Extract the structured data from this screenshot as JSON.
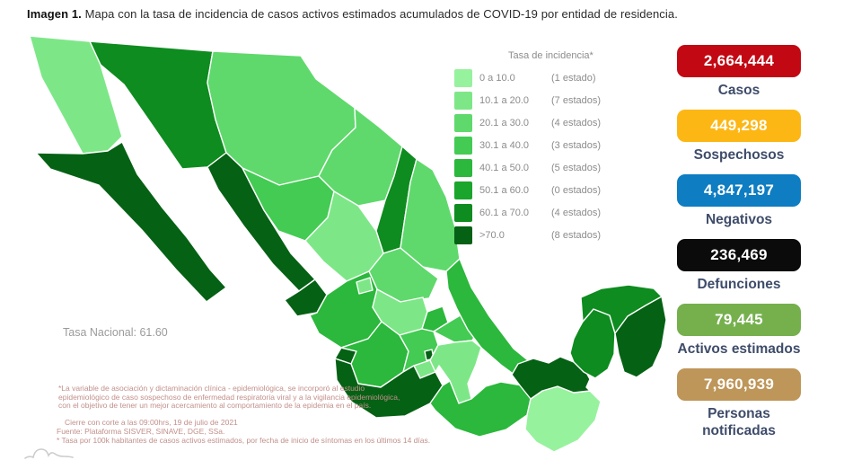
{
  "title": {
    "prefix": "Imagen 1.",
    "text": " Mapa con la tasa de incidencia de casos activos estimados acumulados de COVID-19 por entidad de residencia."
  },
  "map": {
    "national_rate_label": "Tasa Nacional: 61.60",
    "national_rate": 61.6,
    "legend": {
      "title": "Tasa de incidencia*",
      "items": [
        {
          "range": "0   a  10.0",
          "count": "(1 estado)",
          "color": "#97F29E"
        },
        {
          "range": "10.1 a  20.0",
          "count": "(7 estados)",
          "color": "#7DE787"
        },
        {
          "range": "20.1 a  30.0",
          "count": "(4 estados)",
          "color": "#5FD96C"
        },
        {
          "range": "30.1 a  40.0",
          "count": "(3 estados)",
          "color": "#43CB53"
        },
        {
          "range": "40.1 a  50.0",
          "count": "(5 estados)",
          "color": "#2BB83C"
        },
        {
          "range": "50.1 a  60.0",
          "count": "(0 estados)",
          "color": "#1AA52C"
        },
        {
          "range": "60.1 a  70.0",
          "count": "(4 estados)",
          "color": "#0E8C1F"
        },
        {
          "range": ">70.0",
          "count": "(8 estados)",
          "color": "#056114"
        }
      ]
    }
  },
  "chart_data": {
    "type": "choropleth_map",
    "region": "Mexico",
    "title": "Tasa de incidencia de casos activos estimados acumulados de COVID-19 por entidad de residencia",
    "unit": "Tasa por 100k habitantes",
    "national_rate": 61.6,
    "bucket_ranges": [
      "0-10.0",
      "10.1-20.0",
      "20.1-30.0",
      "30.1-40.0",
      "40.1-50.0",
      "50.1-60.0",
      "60.1-70.0",
      ">70.0"
    ],
    "bucket_state_counts": [
      1,
      7,
      4,
      3,
      5,
      0,
      4,
      8
    ],
    "states": [
      {
        "id": "baja-california",
        "name": "Baja California",
        "bucket": 1
      },
      {
        "id": "baja-california-sur",
        "name": "Baja California Sur",
        "bucket": 7
      },
      {
        "id": "sonora",
        "name": "Sonora",
        "bucket": 6
      },
      {
        "id": "chihuahua",
        "name": "Chihuahua",
        "bucket": 2
      },
      {
        "id": "coahuila",
        "name": "Coahuila",
        "bucket": 2
      },
      {
        "id": "nuevo-leon",
        "name": "Nuevo León",
        "bucket": 6
      },
      {
        "id": "tamaulipas",
        "name": "Tamaulipas",
        "bucket": 2
      },
      {
        "id": "sinaloa",
        "name": "Sinaloa",
        "bucket": 7
      },
      {
        "id": "durango",
        "name": "Durango",
        "bucket": 3
      },
      {
        "id": "zacatecas",
        "name": "Zacatecas",
        "bucket": 1
      },
      {
        "id": "san-luis-potosi",
        "name": "San Luis Potosí",
        "bucket": 2
      },
      {
        "id": "nayarit",
        "name": "Nayarit",
        "bucket": 7
      },
      {
        "id": "jalisco",
        "name": "Jalisco",
        "bucket": 4
      },
      {
        "id": "aguascalientes",
        "name": "Aguascalientes",
        "bucket": 1
      },
      {
        "id": "guanajuato",
        "name": "Guanajuato",
        "bucket": 1
      },
      {
        "id": "queretaro",
        "name": "Querétaro",
        "bucket": 4
      },
      {
        "id": "hidalgo",
        "name": "Hidalgo",
        "bucket": 3
      },
      {
        "id": "veracruz",
        "name": "Veracruz",
        "bucket": 4
      },
      {
        "id": "colima",
        "name": "Colima",
        "bucket": 7
      },
      {
        "id": "michoacan",
        "name": "Michoacán",
        "bucket": 4
      },
      {
        "id": "mexico-state",
        "name": "Estado de México",
        "bucket": 3
      },
      {
        "id": "cdmx",
        "name": "Ciudad de México",
        "bucket": 7
      },
      {
        "id": "tlaxcala",
        "name": "Tlaxcala",
        "bucket": 1
      },
      {
        "id": "morelos",
        "name": "Morelos",
        "bucket": 1
      },
      {
        "id": "puebla",
        "name": "Puebla",
        "bucket": 1
      },
      {
        "id": "guerrero",
        "name": "Guerrero",
        "bucket": 7
      },
      {
        "id": "oaxaca",
        "name": "Oaxaca",
        "bucket": 4
      },
      {
        "id": "chiapas",
        "name": "Chiapas",
        "bucket": 0
      },
      {
        "id": "tabasco",
        "name": "Tabasco",
        "bucket": 7
      },
      {
        "id": "campeche",
        "name": "Campeche",
        "bucket": 6
      },
      {
        "id": "yucatan",
        "name": "Yucatán",
        "bucket": 6
      },
      {
        "id": "quintana-roo",
        "name": "Quintana Roo",
        "bucket": 7
      }
    ]
  },
  "stats": [
    {
      "value": "2,664,444",
      "label": "Casos",
      "color": "#C20813"
    },
    {
      "value": "449,298",
      "label": "Sospechosos",
      "color": "#FDB715"
    },
    {
      "value": "4,847,197",
      "label": "Negativos",
      "color": "#0E7DC2"
    },
    {
      "value": "236,469",
      "label": "Defunciones",
      "color": "#0B0B0B"
    },
    {
      "value": "79,445",
      "label": "Activos estimados",
      "color": "#75B04D"
    },
    {
      "value": "7,960,939",
      "label": "Personas notificadas",
      "color": "#BE9659"
    }
  ],
  "footnotes": {
    "clinical_note": "*La variable de asociación y dictaminación clínica - epidemiológica, se incorporó al estudio epidemiológico de caso sospechoso de enfermedad respiratoria viral y a la vigilancia epidemiológica, con el objetivo de tener un mejor acercamiento al comportamiento de la epidemia en el país.",
    "cutoff": "Cierre con corte a las 09:00hrs, 19 de julio de 2021",
    "source": "Fuente: Plataforma SISVER, SINAVE, DGE, SSa.",
    "rate_note": "* Tasa por 100k habitantes de casos activos estimados, por fecha de inicio de síntomas en los últimos 14 días."
  }
}
